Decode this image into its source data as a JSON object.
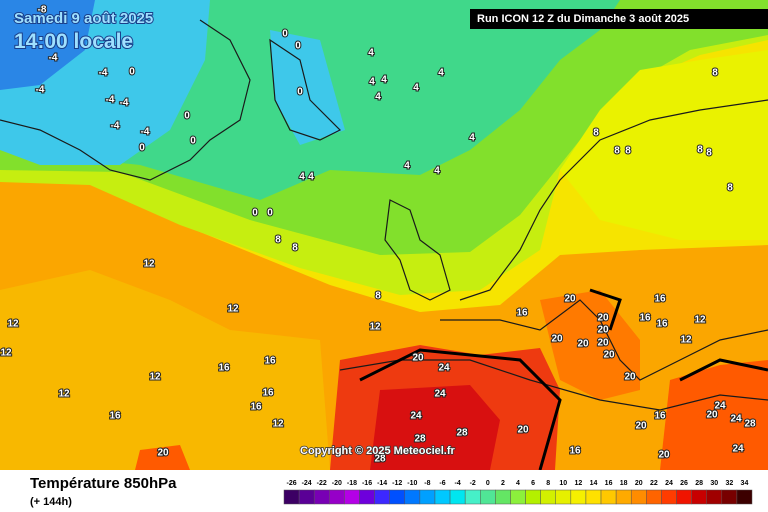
{
  "header": {
    "date": "Samedi 9 août 2025",
    "time": "14:00 locale",
    "run": "Run ICON 12 Z du Dimanche 3 août 2025"
  },
  "copyright": "Copyright © 2025 Meteociel.fr",
  "footer": {
    "title": "Température 850hPa",
    "lead": "(+ 144h)"
  },
  "legend": {
    "values": [
      -26,
      -24,
      -22,
      -20,
      -18,
      -16,
      -14,
      -12,
      -10,
      -8,
      -6,
      -4,
      -2,
      0,
      2,
      4,
      6,
      8,
      10,
      12,
      14,
      16,
      18,
      20,
      22,
      24,
      26,
      28,
      30,
      32,
      34
    ],
    "colors": [
      "#3c0064",
      "#5a0096",
      "#7800b4",
      "#9600c8",
      "#b400e6",
      "#6e00dc",
      "#3c28ff",
      "#0050ff",
      "#0078ff",
      "#00a0ff",
      "#00c8ff",
      "#00e6f0",
      "#46f0c8",
      "#50e696",
      "#64e664",
      "#8cf03c",
      "#b4f000",
      "#d2f000",
      "#e6f000",
      "#f5f000",
      "#ffe100",
      "#ffc800",
      "#ffaa00",
      "#ff8c00",
      "#ff6400",
      "#ff3c00",
      "#f01400",
      "#c80000",
      "#a00000",
      "#780000",
      "#3c0000"
    ]
  },
  "map_labels": [
    -8,
    -4,
    -4,
    -4,
    -4,
    -4,
    -4,
    -4,
    0,
    0,
    0,
    0,
    0,
    0,
    0,
    0,
    0,
    4,
    4,
    4,
    4,
    4,
    4,
    4,
    4,
    4,
    4,
    4,
    8,
    8,
    8,
    8,
    8,
    8,
    8,
    8,
    8,
    8,
    12,
    12,
    12,
    12,
    12,
    12,
    12,
    12,
    12,
    12,
    16,
    16,
    16,
    16,
    16,
    16,
    16,
    16,
    16,
    16,
    16,
    20,
    20,
    20,
    20,
    20,
    20,
    20,
    20,
    20,
    20,
    20,
    20,
    20,
    20,
    24,
    24,
    24,
    24,
    24,
    24,
    28,
    28,
    28,
    28
  ]
}
